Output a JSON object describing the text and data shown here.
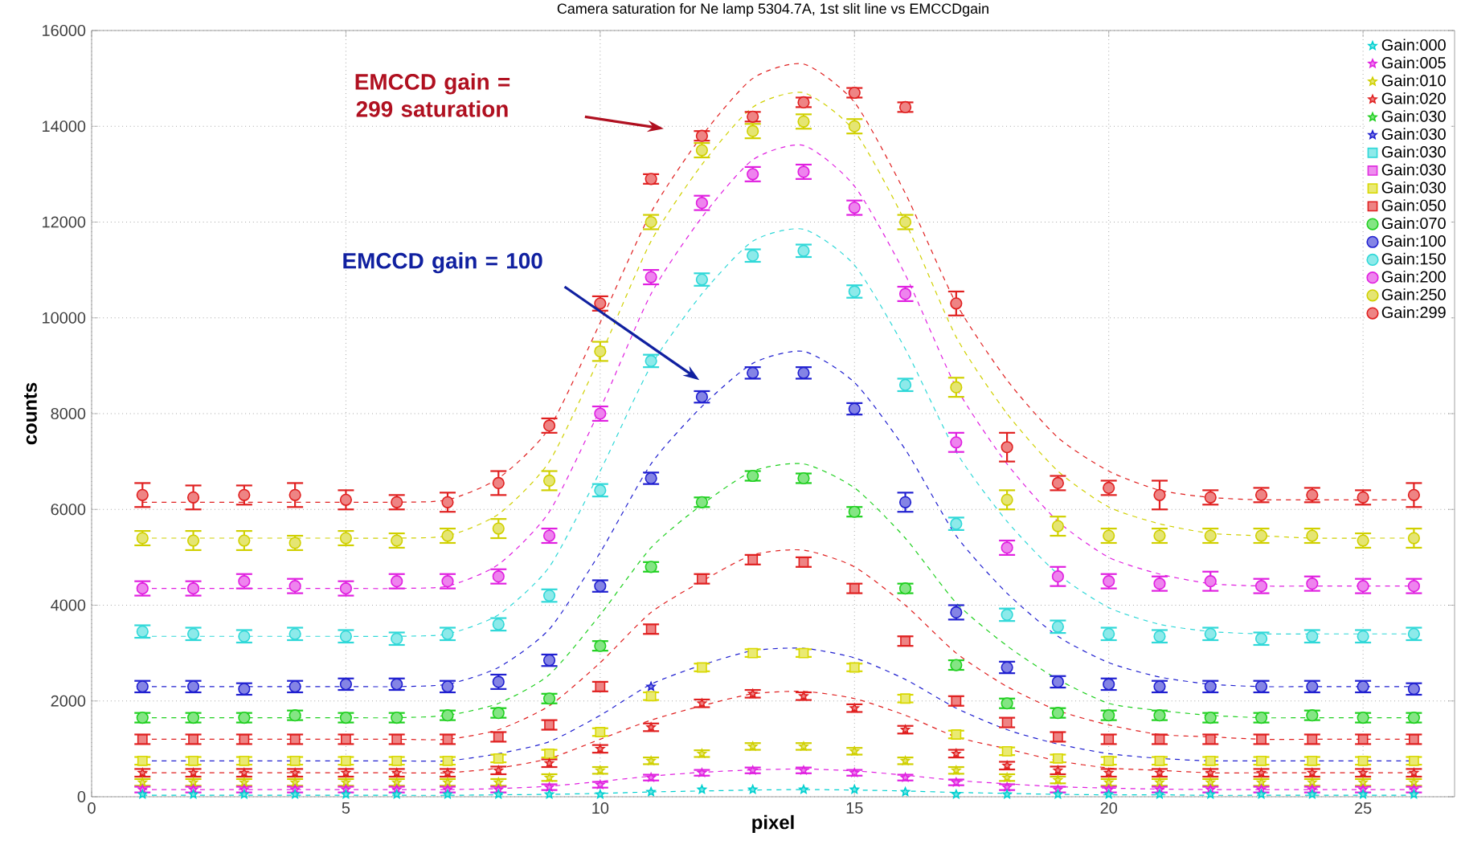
{
  "chart_data": {
    "type": "scatter",
    "title": "Camera saturation for Ne lamp 5304.7A, 1st slit line vs EMCCDgain",
    "xlabel": "pixel",
    "ylabel": "counts",
    "xlim": [
      0,
      26.8
    ],
    "ylim": [
      0,
      16000
    ],
    "xticks": [
      0,
      5,
      10,
      15,
      20,
      25
    ],
    "yticks": [
      0,
      2000,
      4000,
      6000,
      8000,
      10000,
      12000,
      14000,
      16000
    ],
    "grid": true,
    "legend": "top right",
    "x": [
      1,
      2,
      3,
      4,
      5,
      6,
      7,
      8,
      9,
      10,
      11,
      12,
      13,
      14,
      15,
      16,
      17,
      18,
      19,
      20,
      21,
      22,
      23,
      24,
      25,
      26
    ],
    "annotations": [
      "EMCCD gain = 299 saturation",
      "EMCCD gain = 100"
    ],
    "series": [
      {
        "name": "Gain:000",
        "color": "#00d0d0",
        "marker": "star",
        "values": [
          50,
          50,
          50,
          50,
          50,
          50,
          50,
          50,
          50,
          50,
          100,
          150,
          150,
          150,
          150,
          100,
          50,
          50,
          50,
          50,
          50,
          50,
          50,
          50,
          50,
          50
        ]
      },
      {
        "name": "Gain:005",
        "color": "#e020e0",
        "marker": "star",
        "values": [
          150,
          150,
          150,
          150,
          150,
          150,
          150,
          150,
          200,
          250,
          400,
          500,
          550,
          550,
          500,
          400,
          300,
          200,
          150,
          150,
          150,
          150,
          150,
          150,
          150,
          150
        ],
        "errors": [
          60,
          60,
          60,
          60,
          60,
          60,
          60,
          60,
          60,
          60,
          60,
          60,
          60,
          60,
          60,
          60,
          60,
          60,
          60,
          60,
          60,
          60,
          60,
          60,
          60,
          60
        ]
      },
      {
        "name": "Gain:010",
        "color": "#d0d000",
        "marker": "star",
        "values": [
          300,
          300,
          300,
          300,
          300,
          300,
          300,
          300,
          400,
          550,
          750,
          900,
          1050,
          1050,
          950,
          750,
          550,
          400,
          350,
          300,
          300,
          300,
          300,
          300,
          300,
          300
        ],
        "errors": [
          70,
          70,
          70,
          70,
          70,
          70,
          70,
          70,
          70,
          70,
          70,
          70,
          70,
          70,
          70,
          70,
          70,
          70,
          70,
          70,
          70,
          70,
          70,
          70,
          70,
          70
        ]
      },
      {
        "name": "Gain:020",
        "color": "#e02020",
        "marker": "star",
        "values": [
          500,
          500,
          500,
          500,
          500,
          500,
          500,
          550,
          700,
          1000,
          1450,
          1950,
          2150,
          2100,
          1850,
          1400,
          900,
          650,
          550,
          500,
          500,
          500,
          500,
          500,
          500,
          500
        ],
        "errors": [
          80,
          80,
          80,
          80,
          80,
          80,
          80,
          80,
          80,
          80,
          80,
          80,
          80,
          80,
          80,
          80,
          80,
          80,
          80,
          80,
          80,
          80,
          80,
          80,
          80,
          80
        ]
      },
      {
        "name": "Gain:030",
        "color": "#20d020",
        "marker": "star",
        "values": [
          null,
          null,
          null,
          null,
          null,
          null,
          null,
          null,
          null,
          null,
          null,
          null,
          null,
          null,
          null,
          null,
          null,
          null,
          null,
          null,
          null,
          null,
          null,
          null,
          null,
          null
        ]
      },
      {
        "name": "Gain:030",
        "color": "#2020d0",
        "marker": "star",
        "values": [
          null,
          null,
          null,
          null,
          null,
          null,
          null,
          null,
          null,
          null,
          2300,
          null,
          null,
          null,
          null,
          null,
          null,
          null,
          null,
          null,
          null,
          null,
          null,
          null,
          null,
          null
        ]
      },
      {
        "name": "Gain:030",
        "color": "#30d8d8",
        "marker": "square",
        "values": [
          null,
          null,
          null,
          null,
          null,
          null,
          null,
          null,
          null,
          null,
          null,
          null,
          null,
          null,
          null,
          null,
          null,
          null,
          null,
          null,
          null,
          null,
          null,
          null,
          null,
          null
        ]
      },
      {
        "name": "Gain:030",
        "color": "#e030e0",
        "marker": "square",
        "values": [
          null,
          null,
          null,
          null,
          null,
          null,
          null,
          null,
          null,
          null,
          null,
          null,
          null,
          null,
          null,
          null,
          null,
          null,
          null,
          null,
          null,
          null,
          null,
          null,
          null,
          null
        ]
      },
      {
        "name": "Gain:030",
        "color": "#d8d800",
        "marker": "square",
        "values": [
          750,
          750,
          750,
          750,
          750,
          750,
          750,
          800,
          900,
          1350,
          2100,
          2700,
          3000,
          3000,
          2700,
          2050,
          1300,
          950,
          800,
          750,
          750,
          750,
          750,
          750,
          750,
          750
        ],
        "errors": [
          80,
          80,
          80,
          80,
          80,
          80,
          80,
          80,
          80,
          80,
          80,
          80,
          80,
          80,
          80,
          80,
          80,
          80,
          80,
          80,
          80,
          80,
          80,
          80,
          80,
          80
        ]
      },
      {
        "name": "Gain:050",
        "color": "#e02020",
        "marker": "square",
        "values": [
          1200,
          1200,
          1200,
          1200,
          1200,
          1200,
          1200,
          1250,
          1500,
          2300,
          3500,
          4550,
          4950,
          4900,
          4350,
          3250,
          2000,
          1550,
          1250,
          1200,
          1200,
          1200,
          1200,
          1200,
          1200,
          1200
        ],
        "errors": [
          100,
          100,
          100,
          100,
          100,
          100,
          100,
          100,
          100,
          100,
          100,
          100,
          100,
          100,
          100,
          100,
          100,
          100,
          100,
          100,
          100,
          100,
          100,
          100,
          100,
          100
        ]
      },
      {
        "name": "Gain:070",
        "color": "#20d020",
        "marker": "circle",
        "values": [
          1650,
          1650,
          1650,
          1700,
          1650,
          1650,
          1700,
          1750,
          2050,
          3150,
          4800,
          6150,
          6700,
          6650,
          5950,
          4350,
          2750,
          1950,
          1750,
          1700,
          1700,
          1650,
          1650,
          1700,
          1650,
          1650
        ],
        "errors": [
          100,
          100,
          100,
          100,
          100,
          100,
          100,
          100,
          100,
          100,
          100,
          100,
          100,
          100,
          100,
          100,
          100,
          100,
          100,
          100,
          100,
          100,
          100,
          100,
          100,
          100
        ]
      },
      {
        "name": "Gain:100",
        "color": "#2020d0",
        "marker": "circle",
        "values": [
          2300,
          2300,
          2250,
          2300,
          2350,
          2350,
          2300,
          2400,
          2850,
          4400,
          6650,
          8350,
          8850,
          8850,
          8100,
          6150,
          3850,
          2700,
          2400,
          2350,
          2300,
          2300,
          2300,
          2300,
          2300,
          2250
        ],
        "errors": [
          120,
          120,
          120,
          120,
          120,
          120,
          120,
          150,
          120,
          120,
          120,
          120,
          120,
          120,
          120,
          200,
          150,
          120,
          120,
          120,
          120,
          120,
          120,
          120,
          120,
          120
        ]
      },
      {
        "name": "Gain:150",
        "color": "#30d8d8",
        "marker": "circle",
        "values": [
          3450,
          3400,
          3350,
          3400,
          3350,
          3300,
          3400,
          3600,
          4200,
          6400,
          9100,
          10800,
          11300,
          11400,
          10550,
          8600,
          5700,
          3800,
          3550,
          3400,
          3350,
          3400,
          3300,
          3350,
          3350,
          3400
        ],
        "errors": [
          130,
          130,
          130,
          130,
          130,
          130,
          130,
          130,
          130,
          130,
          130,
          130,
          130,
          130,
          130,
          130,
          130,
          130,
          130,
          130,
          130,
          130,
          130,
          130,
          130,
          130
        ]
      },
      {
        "name": "Gain:200",
        "color": "#e020e0",
        "marker": "circle",
        "values": [
          4350,
          4350,
          4500,
          4400,
          4350,
          4500,
          4500,
          4600,
          5450,
          8000,
          10850,
          12400,
          13000,
          13050,
          12300,
          10500,
          7400,
          5200,
          4600,
          4500,
          4450,
          4500,
          4400,
          4450,
          4400,
          4400
        ],
        "errors": [
          150,
          150,
          150,
          150,
          150,
          150,
          150,
          150,
          150,
          150,
          150,
          150,
          150,
          150,
          150,
          150,
          200,
          150,
          200,
          150,
          150,
          200,
          150,
          150,
          150,
          150
        ]
      },
      {
        "name": "Gain:250",
        "color": "#d0d000",
        "marker": "circle",
        "values": [
          5400,
          5350,
          5350,
          5300,
          5400,
          5350,
          5450,
          5600,
          6600,
          9300,
          12000,
          13500,
          13900,
          14100,
          14000,
          12000,
          8550,
          6200,
          5650,
          5450,
          5450,
          5450,
          5450,
          5450,
          5350,
          5400
        ],
        "errors": [
          150,
          200,
          200,
          150,
          150,
          150,
          150,
          200,
          200,
          200,
          150,
          150,
          150,
          150,
          150,
          150,
          200,
          200,
          200,
          150,
          150,
          150,
          150,
          150,
          150,
          200
        ]
      },
      {
        "name": "Gain:299",
        "color": "#e02020",
        "marker": "circle",
        "values": [
          6300,
          6250,
          6300,
          6300,
          6200,
          6150,
          6150,
          6550,
          7750,
          10300,
          12900,
          13800,
          14200,
          14500,
          14700,
          14400,
          10300,
          7300,
          6550,
          6450,
          6300,
          6250,
          6300,
          6300,
          6250,
          6300
        ],
        "errors": [
          250,
          250,
          200,
          250,
          200,
          150,
          200,
          250,
          150,
          150,
          100,
          100,
          100,
          100,
          100,
          100,
          250,
          300,
          150,
          150,
          300,
          150,
          150,
          150,
          150,
          250
        ]
      },
      {
        "type": "line",
        "color": "#e02020",
        "line_style": "dashed",
        "marker": "none",
        "values": [
          6150,
          6150,
          6150,
          6150,
          6150,
          6150,
          6200,
          6650,
          7700,
          9900,
          12200,
          13800,
          15000,
          15300,
          14500,
          12600,
          10300,
          8700,
          7500,
          6800,
          6400,
          6250,
          6200,
          6200,
          6200,
          6200
        ]
      },
      {
        "type": "line",
        "color": "#d0d000",
        "line_style": "dashed",
        "marker": "none",
        "values": [
          5400,
          5400,
          5400,
          5400,
          5400,
          5400,
          5450,
          5900,
          7000,
          9200,
          11600,
          13200,
          14400,
          14700,
          13900,
          12000,
          9600,
          8000,
          6800,
          6050,
          5700,
          5500,
          5450,
          5400,
          5400,
          5400
        ]
      },
      {
        "type": "line",
        "color": "#e020e0",
        "line_style": "dashed",
        "marker": "none",
        "values": [
          4350,
          4350,
          4350,
          4350,
          4350,
          4350,
          4400,
          4850,
          5950,
          8100,
          10500,
          12100,
          13300,
          13600,
          12750,
          10900,
          8550,
          6950,
          5750,
          5000,
          4650,
          4450,
          4400,
          4400,
          4400,
          4400
        ]
      },
      {
        "type": "line",
        "color": "#30d8d8",
        "line_style": "dashed",
        "marker": "none",
        "values": [
          3350,
          3350,
          3350,
          3350,
          3350,
          3350,
          3400,
          3800,
          4800,
          6800,
          9000,
          10500,
          11600,
          11850,
          11100,
          9350,
          7200,
          5750,
          4650,
          3950,
          3600,
          3450,
          3400,
          3400,
          3400,
          3400
        ]
      },
      {
        "type": "line",
        "color": "#2020d0",
        "line_style": "dashed",
        "marker": "none",
        "values": [
          2300,
          2300,
          2300,
          2300,
          2300,
          2300,
          2350,
          2700,
          3500,
          5100,
          6950,
          8150,
          9050,
          9300,
          8650,
          7250,
          5450,
          4250,
          3350,
          2800,
          2500,
          2350,
          2300,
          2300,
          2300,
          2300
        ]
      },
      {
        "type": "line",
        "color": "#20d020",
        "line_style": "dashed",
        "marker": "none",
        "values": [
          1650,
          1650,
          1650,
          1650,
          1650,
          1650,
          1700,
          1950,
          2550,
          3800,
          5200,
          6100,
          6800,
          6950,
          6450,
          5400,
          4050,
          3150,
          2450,
          1950,
          1800,
          1700,
          1650,
          1650,
          1650,
          1650
        ]
      },
      {
        "type": "line",
        "color": "#e02020",
        "line_style": "dashed",
        "marker": "none",
        "values": [
          1200,
          1200,
          1200,
          1200,
          1200,
          1200,
          1200,
          1400,
          1900,
          2800,
          3850,
          4500,
          5050,
          5150,
          4800,
          4000,
          3000,
          2300,
          1800,
          1500,
          1300,
          1250,
          1200,
          1200,
          1200,
          1200
        ]
      },
      {
        "type": "line",
        "color": "#2020d0",
        "line_style": "dashed",
        "marker": "none",
        "values": [
          750,
          750,
          750,
          750,
          750,
          750,
          750,
          900,
          1150,
          1700,
          2350,
          2750,
          3050,
          3100,
          2900,
          2450,
          1850,
          1400,
          1100,
          900,
          800,
          750,
          750,
          750,
          750,
          750
        ]
      },
      {
        "type": "line",
        "color": "#e02020",
        "line_style": "dashed",
        "marker": "none",
        "values": [
          500,
          500,
          500,
          500,
          500,
          500,
          500,
          600,
          800,
          1200,
          1600,
          1900,
          2150,
          2200,
          2050,
          1700,
          1250,
          1000,
          750,
          600,
          550,
          500,
          500,
          500,
          500,
          500
        ]
      },
      {
        "type": "line",
        "color": "#e020e0",
        "line_style": "dashed",
        "marker": "none",
        "values": [
          150,
          150,
          150,
          150,
          150,
          150,
          150,
          170,
          220,
          320,
          430,
          510,
          560,
          580,
          540,
          450,
          340,
          270,
          210,
          180,
          160,
          150,
          150,
          150,
          150,
          150
        ]
      },
      {
        "type": "line",
        "color": "#00d0d0",
        "line_style": "dashed",
        "marker": "none",
        "values": [
          30,
          30,
          30,
          30,
          30,
          30,
          30,
          40,
          50,
          70,
          100,
          120,
          140,
          150,
          140,
          120,
          90,
          70,
          50,
          40,
          40,
          30,
          30,
          30,
          30,
          30
        ]
      }
    ]
  }
}
